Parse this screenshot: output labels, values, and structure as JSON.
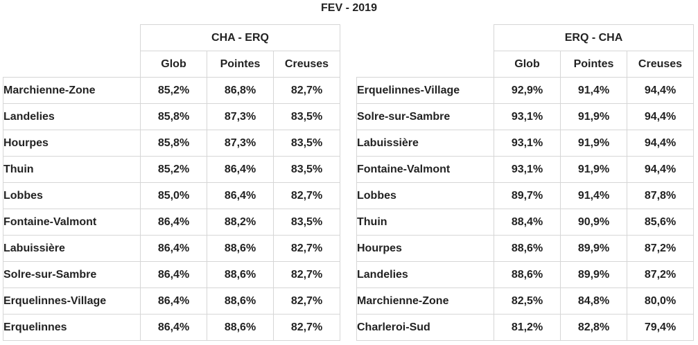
{
  "title": "FEV - 2019",
  "columns": [
    "Glob",
    "Pointes",
    "Creuses"
  ],
  "left": {
    "header": "CHA - ERQ",
    "rows": [
      {
        "name": "Marchienne-Zone",
        "values": [
          "85,2%",
          "86,8%",
          "82,7%"
        ]
      },
      {
        "name": "Landelies",
        "values": [
          "85,8%",
          "87,3%",
          "83,5%"
        ]
      },
      {
        "name": "Hourpes",
        "values": [
          "85,8%",
          "87,3%",
          "83,5%"
        ]
      },
      {
        "name": "Thuin",
        "values": [
          "85,2%",
          "86,4%",
          "83,5%"
        ]
      },
      {
        "name": "Lobbes",
        "values": [
          "85,0%",
          "86,4%",
          "82,7%"
        ]
      },
      {
        "name": "Fontaine-Valmont",
        "values": [
          "86,4%",
          "88,2%",
          "83,5%"
        ]
      },
      {
        "name": "Labuissière",
        "values": [
          "86,4%",
          "88,6%",
          "82,7%"
        ]
      },
      {
        "name": "Solre-sur-Sambre",
        "values": [
          "86,4%",
          "88,6%",
          "82,7%"
        ]
      },
      {
        "name": "Erquelinnes-Village",
        "values": [
          "86,4%",
          "88,6%",
          "82,7%"
        ]
      },
      {
        "name": "Erquelinnes",
        "values": [
          "86,4%",
          "88,6%",
          "82,7%"
        ]
      }
    ]
  },
  "right": {
    "header": "ERQ - CHA",
    "rows": [
      {
        "name": "Erquelinnes-Village",
        "values": [
          "92,9%",
          "91,4%",
          "94,4%"
        ]
      },
      {
        "name": "Solre-sur-Sambre",
        "values": [
          "93,1%",
          "91,9%",
          "94,4%"
        ]
      },
      {
        "name": "Labuissière",
        "values": [
          "93,1%",
          "91,9%",
          "94,4%"
        ]
      },
      {
        "name": "Fontaine-Valmont",
        "values": [
          "93,1%",
          "91,9%",
          "94,4%"
        ]
      },
      {
        "name": "Lobbes",
        "values": [
          "89,7%",
          "91,4%",
          "87,8%"
        ]
      },
      {
        "name": "Thuin",
        "values": [
          "88,4%",
          "90,9%",
          "85,6%"
        ]
      },
      {
        "name": "Hourpes",
        "values": [
          "88,6%",
          "89,9%",
          "87,2%"
        ]
      },
      {
        "name": "Landelies",
        "values": [
          "88,6%",
          "89,9%",
          "87,2%"
        ]
      },
      {
        "name": "Marchienne-Zone",
        "values": [
          "82,5%",
          "84,8%",
          "80,0%"
        ]
      },
      {
        "name": "Charleroi-Sud",
        "values": [
          "81,2%",
          "82,8%",
          "79,4%"
        ]
      }
    ]
  }
}
